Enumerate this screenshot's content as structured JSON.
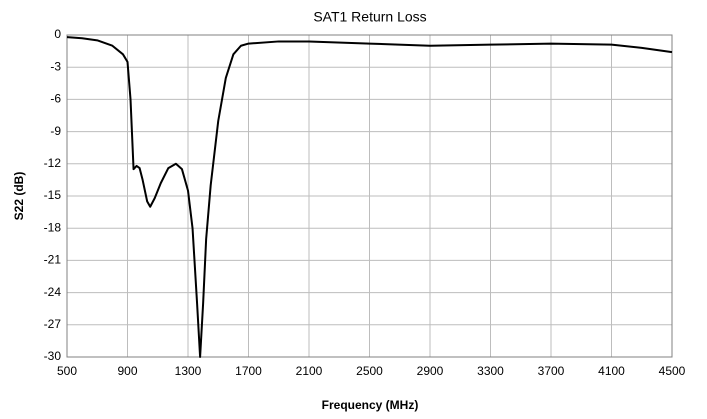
{
  "chart_data": {
    "type": "line",
    "title": "SAT1 Return Loss",
    "x_label": "Frequency (MHz)",
    "y_label": "S22 (dB)",
    "xlim": [
      500,
      4500
    ],
    "xticks": [
      500,
      900,
      1300,
      1700,
      2100,
      2500,
      2900,
      3300,
      3700,
      4100,
      4500
    ],
    "ylim": [
      -30,
      0
    ],
    "yticks": [
      0,
      -3,
      -6,
      -9,
      -12,
      -15,
      -18,
      -21,
      -24,
      -27,
      -30
    ],
    "grid": true,
    "series": [
      {
        "name": "S22",
        "color": "#000000",
        "x": [
          500,
          600,
          700,
          800,
          870,
          900,
          920,
          940,
          960,
          980,
          1000,
          1030,
          1050,
          1080,
          1120,
          1170,
          1220,
          1260,
          1300,
          1330,
          1360,
          1380,
          1400,
          1420,
          1450,
          1500,
          1550,
          1600,
          1650,
          1700,
          1900,
          2100,
          2500,
          2900,
          3300,
          3700,
          4100,
          4300,
          4500
        ],
        "values": [
          -0.2,
          -0.3,
          -0.5,
          -1.0,
          -1.8,
          -2.5,
          -6,
          -12.5,
          -12.2,
          -12.4,
          -13.5,
          -15.5,
          -16,
          -15.2,
          -13.8,
          -12.4,
          -12,
          -12.5,
          -14.5,
          -18,
          -25,
          -30,
          -25,
          -19,
          -14,
          -8,
          -4,
          -1.8,
          -1.0,
          -0.8,
          -0.6,
          -0.6,
          -0.8,
          -1.0,
          -0.9,
          -0.8,
          -0.9,
          -1.2,
          -1.6
        ]
      }
    ]
  }
}
